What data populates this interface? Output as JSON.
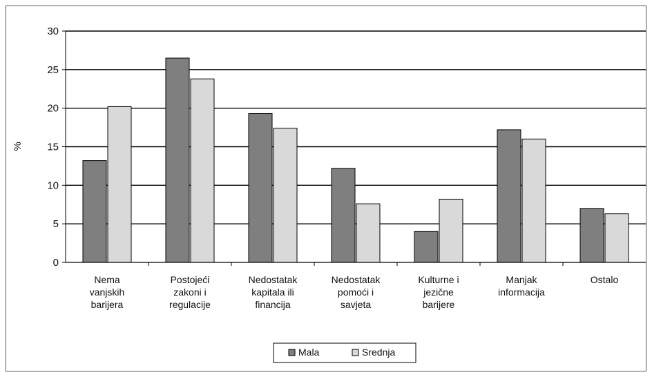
{
  "chart_data": {
    "type": "bar",
    "ylabel": "%",
    "ylim": [
      0,
      30
    ],
    "yticks": [
      "0",
      "5",
      "10",
      "15",
      "20",
      "25",
      "30"
    ],
    "grid": true,
    "legend_position": "bottom",
    "categories": [
      [
        "Nema",
        "vanjskih",
        "barijera"
      ],
      [
        "Postojeći",
        "zakoni i",
        "regulacije"
      ],
      [
        "Nedostatak",
        "kapitala ili",
        "financija"
      ],
      [
        "Nedostatak",
        "pomoći i",
        "savjeta"
      ],
      [
        "Kulturne i",
        "jezične",
        "barijere"
      ],
      [
        "Manjak",
        "informacija"
      ],
      [
        "Ostalo"
      ]
    ],
    "series": [
      {
        "name": "Mala",
        "color": "#7f7f7f",
        "values": [
          13.2,
          26.5,
          19.3,
          12.2,
          4.0,
          17.2,
          7.0
        ]
      },
      {
        "name": "Srednja",
        "color": "#d9d9d9",
        "values": [
          20.2,
          23.8,
          17.4,
          7.6,
          8.2,
          16.0,
          6.3
        ]
      }
    ]
  }
}
